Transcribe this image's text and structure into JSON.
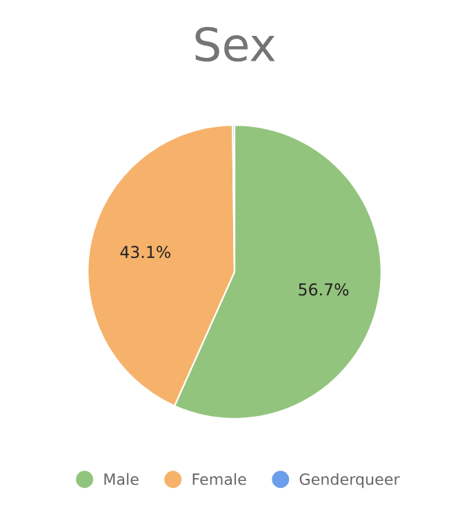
{
  "chart_data": {
    "type": "pie",
    "title": "Sex",
    "categories": [
      "Male",
      "Female",
      "Genderqueer"
    ],
    "values": [
      56.7,
      43.1,
      0.2
    ],
    "colors": [
      "#93c47d",
      "#f6b26b",
      "#6d9eeb"
    ],
    "value_labels": [
      "56.7%",
      "43.1%",
      null
    ],
    "legend": "bottom"
  }
}
